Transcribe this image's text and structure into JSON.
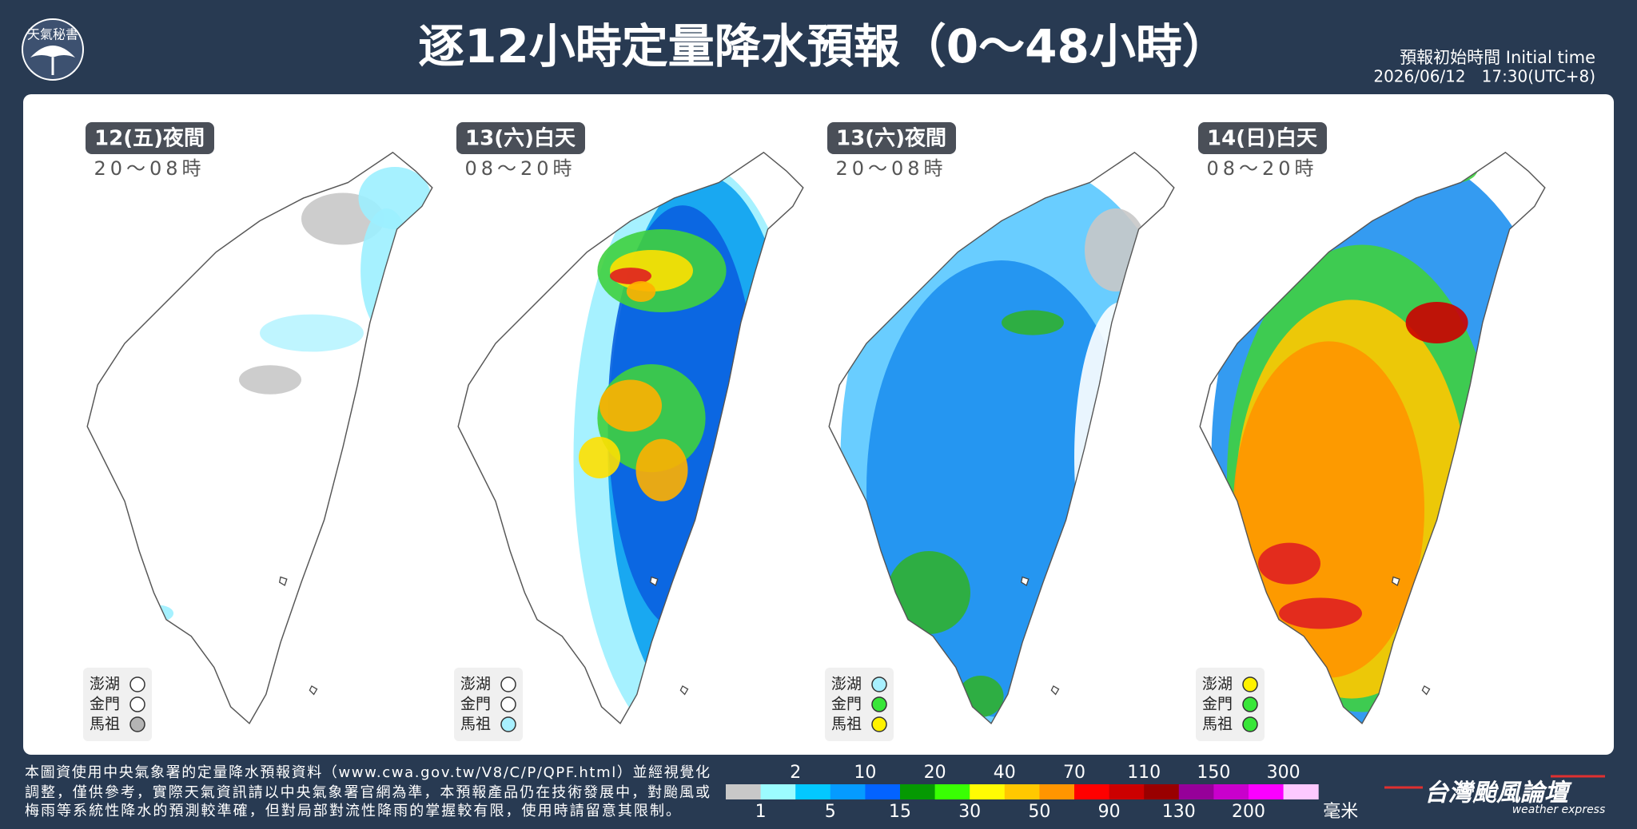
{
  "header": {
    "logo": "天氣秘書",
    "title": "逐12小時定量降水預報（0～48小時）",
    "init_label": "預報初始時間 Initial time",
    "init_time": "2026/06/12　17:30(UTC+8)"
  },
  "panels": [
    {
      "label": "12(五)夜間",
      "time": "20～08時",
      "islands": [
        {
          "name": "澎湖",
          "color": "#ffffff"
        },
        {
          "name": "金門",
          "color": "#ffffff"
        },
        {
          "name": "馬祖",
          "color": "#b4b4b4"
        }
      ]
    },
    {
      "label": "13(六)白天",
      "time": "08～20時",
      "islands": [
        {
          "name": "澎湖",
          "color": "#ffffff"
        },
        {
          "name": "金門",
          "color": "#ffffff"
        },
        {
          "name": "馬祖",
          "color": "#a8f0ff"
        }
      ]
    },
    {
      "label": "13(六)夜間",
      "time": "20～08時",
      "islands": [
        {
          "name": "澎湖",
          "color": "#a8f0ff"
        },
        {
          "name": "金門",
          "color": "#39e639"
        },
        {
          "name": "馬祖",
          "color": "#fff200"
        }
      ]
    },
    {
      "label": "14(日)白天",
      "time": "08～20時",
      "islands": [
        {
          "name": "澎湖",
          "color": "#fff200"
        },
        {
          "name": "金門",
          "color": "#39e639"
        },
        {
          "name": "馬祖",
          "color": "#39e639"
        }
      ]
    }
  ],
  "legend": {
    "ticks": [
      "1",
      "2",
      "5",
      "10",
      "15",
      "20",
      "30",
      "40",
      "50",
      "70",
      "90",
      "110",
      "130",
      "150",
      "200",
      "300"
    ],
    "colors": [
      "#c8c8c8",
      "#9cfcff",
      "#03c8ff",
      "#059bff",
      "#0363ff",
      "#059902",
      "#39ff03",
      "#fffb03",
      "#ffc800",
      "#ff9500",
      "#ff0000",
      "#cc0000",
      "#990000",
      "#960099",
      "#c900cc",
      "#fb00ff",
      "#fdc9ff"
    ],
    "unit": "毫米"
  },
  "footer": {
    "note": [
      "本圖資使用中央氣象署的定量降水預報資料（www.cwa.gov.tw/V8/C/P/QPF.html）並經視覺化",
      "調整，僅供參考，實際天氣資訊請以中央氣象署官網為準，本預報產品仍在技術發展中，對颱風或",
      "梅雨等系統性降水的預測較準確，但對局部對流性降雨的掌握較有限，使用時請留意其限制。"
    ]
  },
  "brand": {
    "name": "台灣颱風論壇",
    "tagline": "weather express"
  }
}
